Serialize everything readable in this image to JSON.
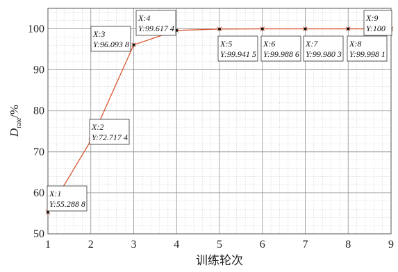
{
  "chart_data": {
    "type": "line",
    "xlabel": "训练轮次",
    "ylabel_main": "D",
    "ylabel_sub": "rate",
    "ylabel_unit": "/%",
    "xlim": [
      1,
      9
    ],
    "ylim": [
      50,
      105
    ],
    "xticks": [
      1,
      2,
      3,
      4,
      5,
      6,
      7,
      8,
      9
    ],
    "yticks": [
      50,
      60,
      70,
      80,
      90,
      100
    ],
    "grid": true,
    "minor_grid": true,
    "line_color": "#d9552f",
    "marker_color": "#111111",
    "series": [
      {
        "x": [
          1,
          2,
          3,
          4,
          5,
          6,
          7,
          8,
          9
        ],
        "y": [
          55.2888,
          72.7174,
          96.0938,
          99.6174,
          99.9415,
          99.9886,
          99.9803,
          99.9981,
          100
        ]
      }
    ],
    "annotations": [
      {
        "x_label": "X:1",
        "y_label": "Y:55.288 8",
        "anchor_x": 1,
        "anchor_y": 55.2888
      },
      {
        "x_label": "X:2",
        "y_label": "Y:72.717 4",
        "anchor_x": 2,
        "anchor_y": 72.7174
      },
      {
        "x_label": "X:3",
        "y_label": "Y:96.093 8",
        "anchor_x": 3,
        "anchor_y": 96.0938
      },
      {
        "x_label": "X:4",
        "y_label": "Y:99.617 4",
        "anchor_x": 4,
        "anchor_y": 99.6174
      },
      {
        "x_label": "X:5",
        "y_label": "Y:99.941 5",
        "anchor_x": 5,
        "anchor_y": 99.9415
      },
      {
        "x_label": "X:6",
        "y_label": "Y:99.988 6",
        "anchor_x": 6,
        "anchor_y": 99.9886
      },
      {
        "x_label": "X:7",
        "y_label": "Y:99.980 3",
        "anchor_x": 7,
        "anchor_y": 99.9803
      },
      {
        "x_label": "X:8",
        "y_label": "Y:99.998 1",
        "anchor_x": 8,
        "anchor_y": 99.9981
      },
      {
        "x_label": "X:9",
        "y_label": "Y:100",
        "anchor_x": 9,
        "anchor_y": 100
      }
    ]
  }
}
